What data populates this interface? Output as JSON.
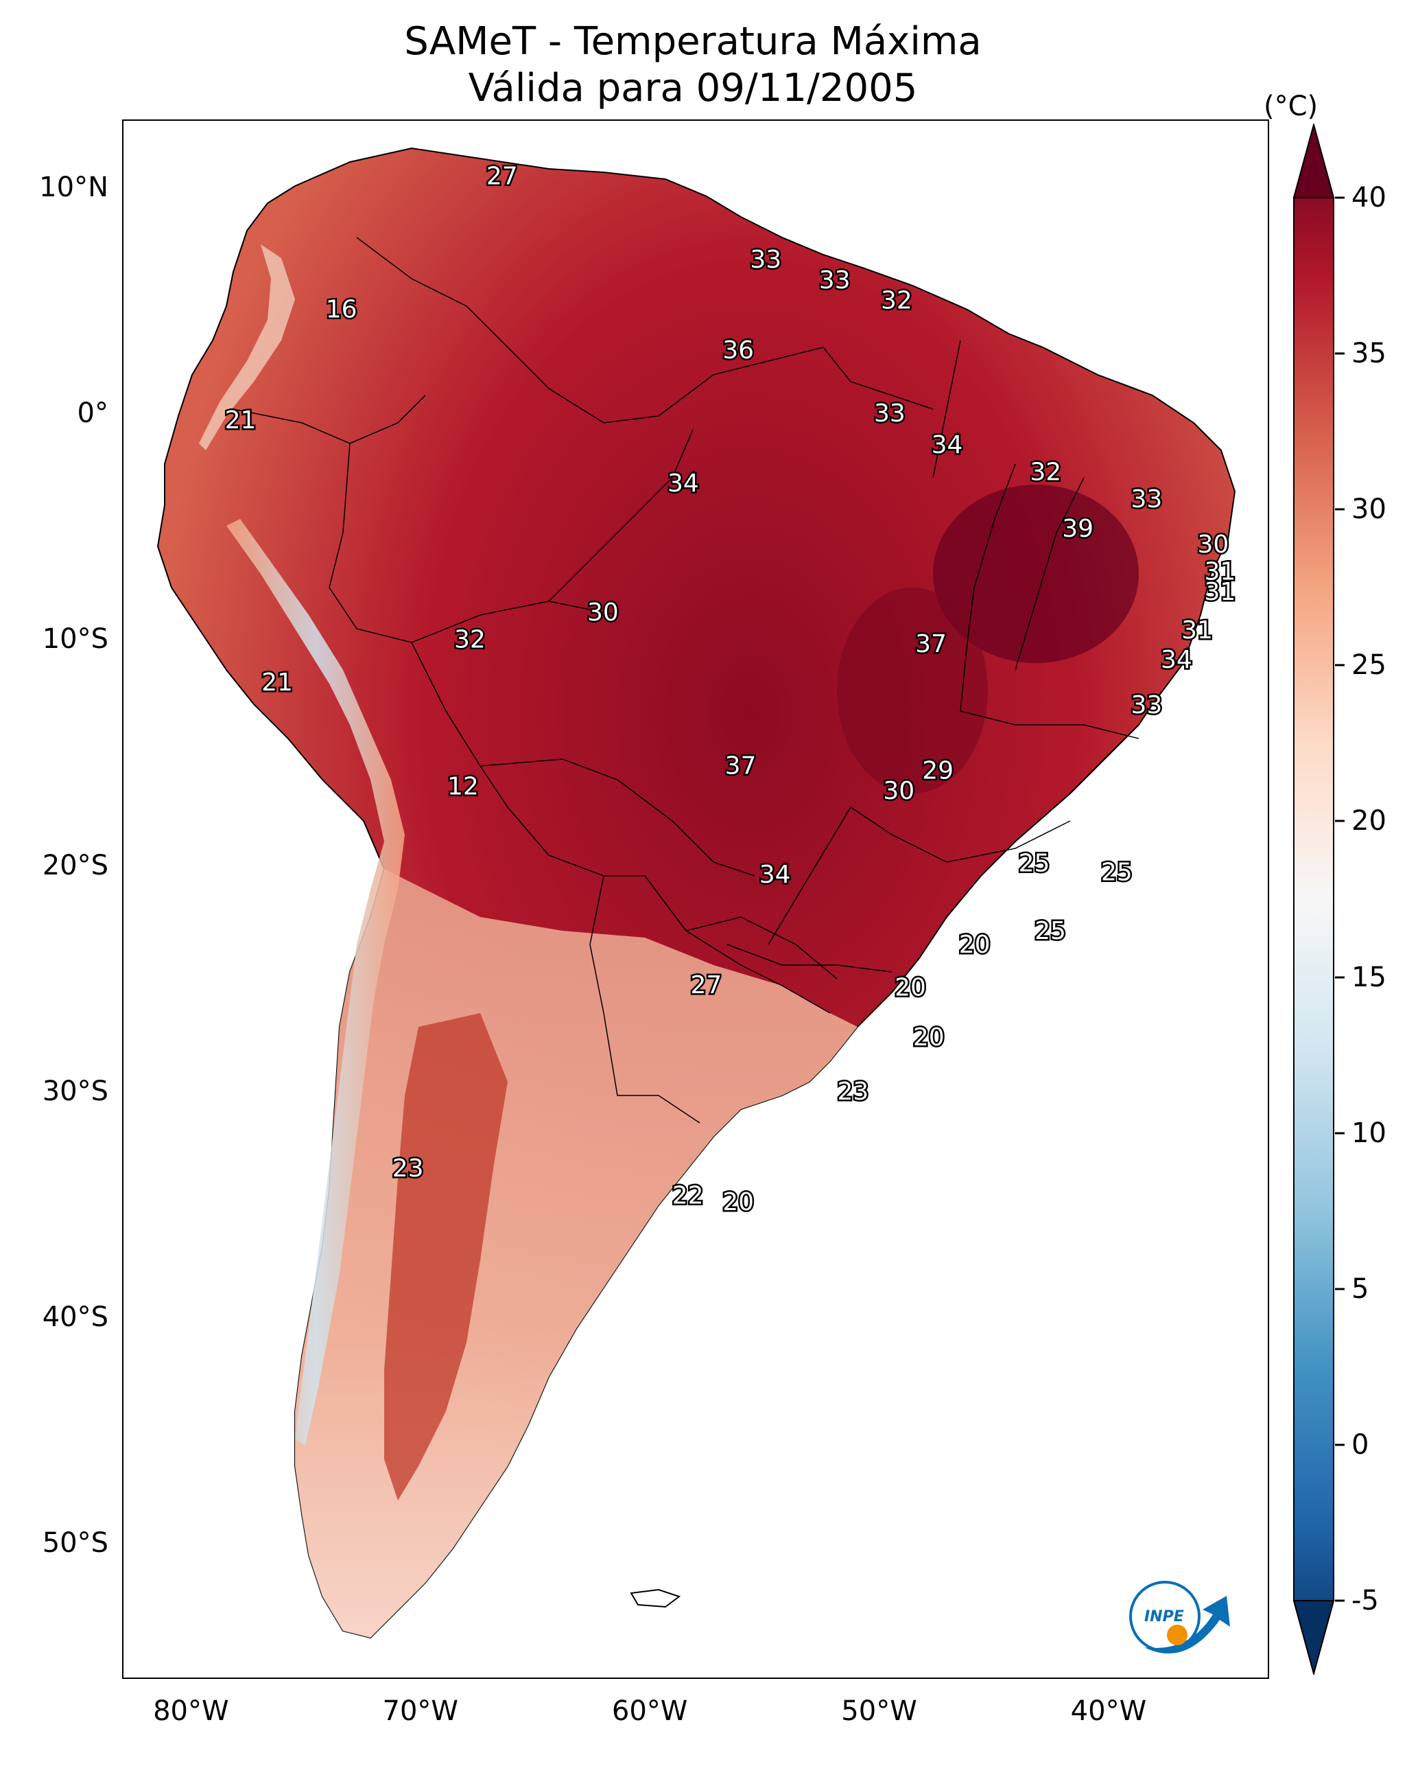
{
  "title": {
    "line1": "SAMeT - Temperatura Máxima",
    "line2": "Válida para 09/11/2005"
  },
  "colorbar": {
    "unit": "(°C)",
    "ticks": [
      "40",
      "35",
      "30",
      "25",
      "20",
      "15",
      "10",
      "5",
      "0",
      "-5"
    ],
    "tick_values": [
      40,
      35,
      30,
      25,
      20,
      15,
      10,
      5,
      0,
      -5
    ],
    "range": [
      -5,
      40
    ],
    "colors": [
      "#053061",
      "#2166ac",
      "#4393c3",
      "#92c5de",
      "#d1e5f0",
      "#f7f7f7",
      "#fddbc7",
      "#f4a582",
      "#d6604d",
      "#b2182b",
      "#67001f"
    ]
  },
  "axes": {
    "lat_labels": [
      "10°N",
      "0°",
      "10°S",
      "20°S",
      "30°S",
      "40°S",
      "50°S"
    ],
    "lat_values": [
      10,
      0,
      -10,
      -20,
      -30,
      -40,
      -50
    ],
    "lon_labels": [
      "80°W",
      "70°W",
      "60°W",
      "50°W",
      "40°W"
    ],
    "lon_values": [
      -80,
      -70,
      -60,
      -50,
      -40
    ],
    "lat_range": [
      -56,
      13
    ],
    "lon_range": [
      -83,
      -33
    ]
  },
  "city_values": [
    {
      "v": "27",
      "lon": -66.5,
      "lat": 10.5
    },
    {
      "v": "33",
      "lon": -55.0,
      "lat": 6.8
    },
    {
      "v": "33",
      "lon": -52.0,
      "lat": 5.9
    },
    {
      "v": "32",
      "lon": -49.3,
      "lat": 5.0
    },
    {
      "v": "16",
      "lon": -73.5,
      "lat": 4.6
    },
    {
      "v": "36",
      "lon": -56.2,
      "lat": 2.8
    },
    {
      "v": "33",
      "lon": -49.6,
      "lat": 0.0
    },
    {
      "v": "21",
      "lon": -77.9,
      "lat": -0.3
    },
    {
      "v": "34",
      "lon": -47.1,
      "lat": -1.4
    },
    {
      "v": "32",
      "lon": -42.8,
      "lat": -2.6
    },
    {
      "v": "34",
      "lon": -58.6,
      "lat": -3.1
    },
    {
      "v": "33",
      "lon": -38.4,
      "lat": -3.8
    },
    {
      "v": "39",
      "lon": -41.4,
      "lat": -5.1
    },
    {
      "v": "30",
      "lon": -35.5,
      "lat": -5.8
    },
    {
      "v": "31",
      "lon": -35.2,
      "lat": -7.0
    },
    {
      "v": "31",
      "lon": -35.2,
      "lat": -7.9
    },
    {
      "v": "30",
      "lon": -62.1,
      "lat": -8.8
    },
    {
      "v": "31",
      "lon": -36.2,
      "lat": -9.6
    },
    {
      "v": "32",
      "lon": -67.9,
      "lat": -10.0
    },
    {
      "v": "37",
      "lon": -47.8,
      "lat": -10.2
    },
    {
      "v": "34",
      "lon": -37.1,
      "lat": -10.9
    },
    {
      "v": "21",
      "lon": -76.3,
      "lat": -11.9
    },
    {
      "v": "33",
      "lon": -38.4,
      "lat": -12.9
    },
    {
      "v": "37",
      "lon": -56.1,
      "lat": -15.6
    },
    {
      "v": "29",
      "lon": -47.5,
      "lat": -15.8
    },
    {
      "v": "30",
      "lon": -49.2,
      "lat": -16.7
    },
    {
      "v": "12",
      "lon": -68.2,
      "lat": -16.5
    },
    {
      "v": "25",
      "lon": -43.3,
      "lat": -19.9
    },
    {
      "v": "25",
      "lon": -39.7,
      "lat": -20.3
    },
    {
      "v": "34",
      "lon": -54.6,
      "lat": -20.4
    },
    {
      "v": "25",
      "lon": -42.6,
      "lat": -22.9
    },
    {
      "v": "20",
      "lon": -45.9,
      "lat": -23.5
    },
    {
      "v": "20",
      "lon": -48.7,
      "lat": -25.4
    },
    {
      "v": "27",
      "lon": -57.6,
      "lat": -25.3
    },
    {
      "v": "20",
      "lon": -47.9,
      "lat": -27.6
    },
    {
      "v": "23",
      "lon": -51.2,
      "lat": -30.0
    },
    {
      "v": "23",
      "lon": -70.6,
      "lat": -33.4
    },
    {
      "v": "22",
      "lon": -58.4,
      "lat": -34.6
    },
    {
      "v": "20",
      "lon": -56.2,
      "lat": -34.9
    }
  ]
}
